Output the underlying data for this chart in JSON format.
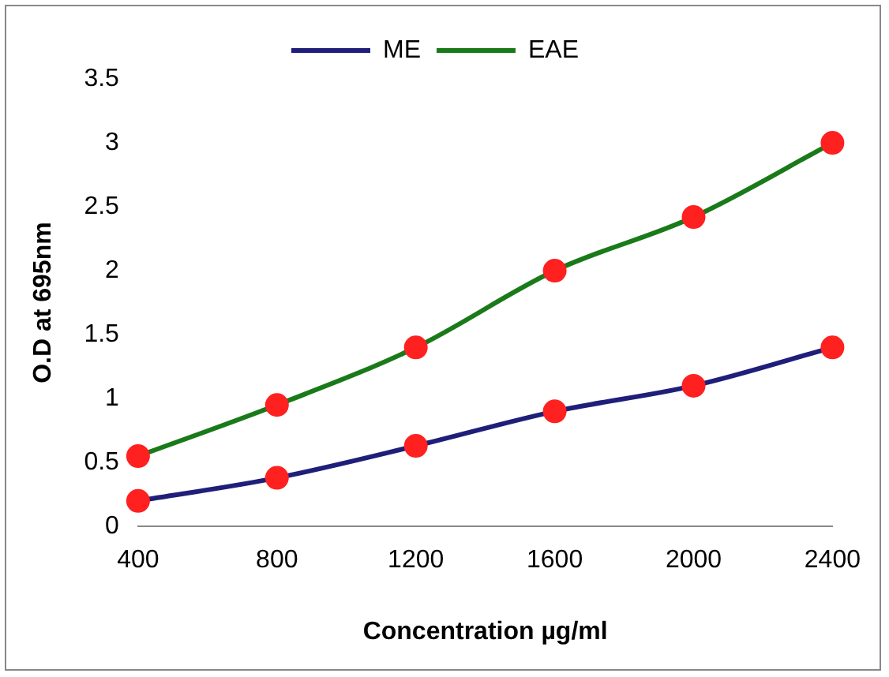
{
  "chart_data": {
    "type": "line",
    "xlabel": "Concentration µg/ml",
    "ylabel": "O.D at 695nm",
    "categories": [
      "400",
      "800",
      "1200",
      "1600",
      "2000",
      "2400"
    ],
    "series": [
      {
        "name": "ME",
        "color": "#1f1f7a",
        "colors": [
          "#ff2020",
          "#ff2020",
          "#ff2020",
          "#ff2020",
          "#ff2020",
          "#ff2020"
        ],
        "values": [
          0.2,
          0.38,
          0.63,
          0.9,
          1.1,
          1.4
        ]
      },
      {
        "name": "EAE",
        "color": "#1a7a1a",
        "colors": [
          "#ff2020",
          "#ff2020",
          "#ff2020",
          "#ff2020",
          "#ff2020",
          "#ff2020"
        ],
        "values": [
          0.55,
          0.95,
          1.4,
          2.0,
          2.42,
          3.0
        ]
      }
    ],
    "ylim": [
      0,
      3.5
    ],
    "yticks": [
      0,
      0.5,
      1,
      1.5,
      2,
      2.5,
      3,
      3.5
    ],
    "grid": false,
    "legend": "top",
    "marker": "circle",
    "line_style": "solid"
  }
}
